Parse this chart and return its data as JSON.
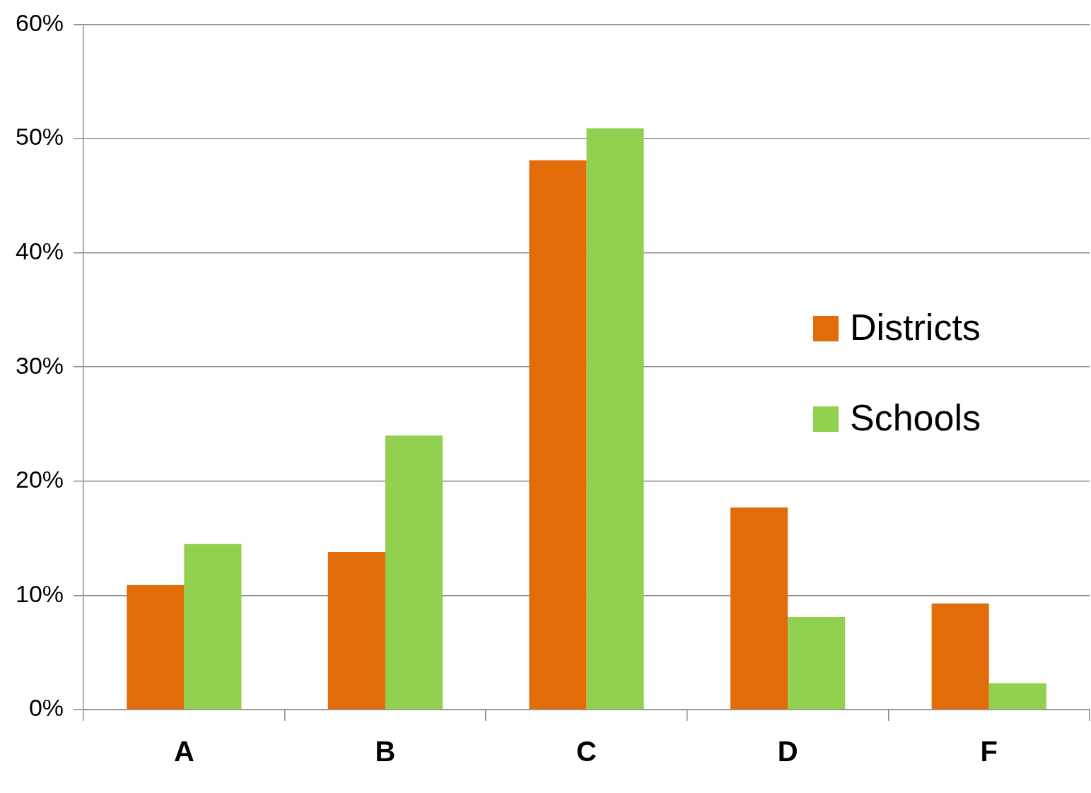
{
  "chart_data": {
    "type": "bar",
    "categories": [
      "A",
      "B",
      "C",
      "D",
      "F"
    ],
    "series": [
      {
        "name": "Districts",
        "color": "#e36c0a",
        "values": [
          10.9,
          13.8,
          48.1,
          17.7,
          9.3
        ]
      },
      {
        "name": "Schools",
        "color": "#92d050",
        "values": [
          14.5,
          24.0,
          50.9,
          8.1,
          2.3
        ]
      }
    ],
    "ylim": [
      0,
      60
    ],
    "yticks": [
      {
        "value": 0,
        "label": "0%"
      },
      {
        "value": 10,
        "label": "10%"
      },
      {
        "value": 20,
        "label": "20%"
      },
      {
        "value": 30,
        "label": "30%"
      },
      {
        "value": 40,
        "label": "40%"
      },
      {
        "value": 50,
        "label": "50%"
      },
      {
        "value": 60,
        "label": "60%"
      }
    ],
    "grid": "y",
    "legend": "right"
  }
}
